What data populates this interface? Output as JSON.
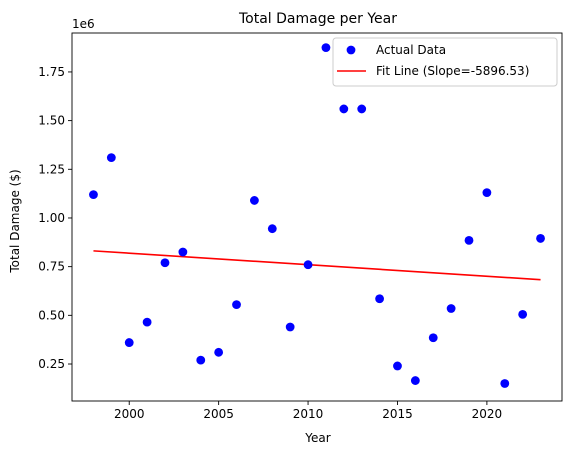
{
  "chart_data": {
    "type": "scatter",
    "title": "Total Damage per Year",
    "xlabel": "Year",
    "ylabel": "Total Damage ($)",
    "y_offset_label": "1e6",
    "xlim": [
      1996.8,
      2024.2
    ],
    "ylim": [
      60000,
      1950000
    ],
    "x_ticks": [
      2000,
      2005,
      2010,
      2015,
      2020
    ],
    "x_tick_labels": [
      "2000",
      "2005",
      "2010",
      "2015",
      "2020"
    ],
    "y_ticks": [
      250000,
      500000,
      750000,
      1000000,
      1250000,
      1500000,
      1750000
    ],
    "y_tick_labels": [
      "0.25",
      "0.50",
      "0.75",
      "1.00",
      "1.25",
      "1.50",
      "1.75"
    ],
    "grid": false,
    "legend_position": "upper right",
    "series": [
      {
        "name": "Actual Data",
        "kind": "scatter",
        "color": "#0000ff",
        "points": [
          {
            "x": 1998,
            "y": 1120000
          },
          {
            "x": 1999,
            "y": 1310000
          },
          {
            "x": 2000,
            "y": 360000
          },
          {
            "x": 2001,
            "y": 465000
          },
          {
            "x": 2002,
            "y": 770000
          },
          {
            "x": 2003,
            "y": 825000
          },
          {
            "x": 2004,
            "y": 270000
          },
          {
            "x": 2005,
            "y": 310000
          },
          {
            "x": 2006,
            "y": 555000
          },
          {
            "x": 2007,
            "y": 1090000
          },
          {
            "x": 2008,
            "y": 945000
          },
          {
            "x": 2009,
            "y": 440000
          },
          {
            "x": 2010,
            "y": 760000
          },
          {
            "x": 2011,
            "y": 1875000
          },
          {
            "x": 2012,
            "y": 1560000
          },
          {
            "x": 2013,
            "y": 1560000
          },
          {
            "x": 2014,
            "y": 585000
          },
          {
            "x": 2015,
            "y": 240000
          },
          {
            "x": 2016,
            "y": 165000
          },
          {
            "x": 2017,
            "y": 385000
          },
          {
            "x": 2018,
            "y": 535000
          },
          {
            "x": 2019,
            "y": 885000
          },
          {
            "x": 2020,
            "y": 1130000
          },
          {
            "x": 2021,
            "y": 150000
          },
          {
            "x": 2022,
            "y": 505000
          },
          {
            "x": 2023,
            "y": 895000
          }
        ]
      },
      {
        "name": "Fit Line (Slope=-5896.53)",
        "kind": "line",
        "color": "#ff0000",
        "points": [
          {
            "x": 1998,
            "y": 831000
          },
          {
            "x": 2023,
            "y": 683000
          }
        ]
      }
    ]
  }
}
